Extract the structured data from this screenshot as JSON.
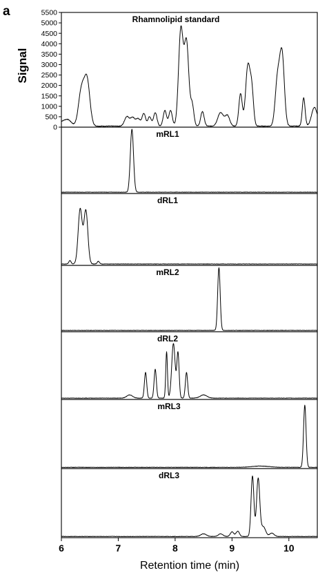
{
  "figure": {
    "panel_letter": "a",
    "ylabel": "Signal",
    "xlabel": "Retention time (min)"
  },
  "chart_data": {
    "type": "line",
    "xlim": [
      6,
      10.5
    ],
    "x_ticks": [
      6,
      7,
      8,
      9,
      10
    ],
    "x_tick_labels": [
      "6",
      "7",
      "8",
      "9",
      "10"
    ],
    "grid": false,
    "panels": [
      {
        "id": "standard",
        "title": "Rhamnolipid standard",
        "ylim": [
          0,
          5500
        ],
        "y_ticks": [
          0,
          500,
          1000,
          1500,
          2000,
          2500,
          3000,
          3500,
          4000,
          4500,
          5000,
          5500
        ],
        "y_tick_labels": [
          "0",
          "500",
          "1000",
          "1500",
          "2000",
          "2500",
          "3000",
          "3500",
          "4000",
          "4500",
          "5000",
          "5500"
        ],
        "baseline": 50,
        "peaks": [
          {
            "x": 6.0,
            "h": 200,
            "w": 0.08
          },
          {
            "x": 6.12,
            "h": 250,
            "w": 0.06
          },
          {
            "x": 6.35,
            "h": 1650,
            "w": 0.05
          },
          {
            "x": 6.45,
            "h": 2200,
            "w": 0.05
          },
          {
            "x": 7.15,
            "h": 450,
            "w": 0.04
          },
          {
            "x": 7.25,
            "h": 400,
            "w": 0.04
          },
          {
            "x": 7.35,
            "h": 350,
            "w": 0.04
          },
          {
            "x": 7.45,
            "h": 600,
            "w": 0.03
          },
          {
            "x": 7.55,
            "h": 450,
            "w": 0.03
          },
          {
            "x": 7.65,
            "h": 650,
            "w": 0.03
          },
          {
            "x": 7.82,
            "h": 750,
            "w": 0.03
          },
          {
            "x": 7.92,
            "h": 750,
            "w": 0.03
          },
          {
            "x": 8.1,
            "h": 4600,
            "w": 0.04
          },
          {
            "x": 8.2,
            "h": 4000,
            "w": 0.04
          },
          {
            "x": 8.3,
            "h": 1000,
            "w": 0.03
          },
          {
            "x": 8.48,
            "h": 700,
            "w": 0.03
          },
          {
            "x": 8.8,
            "h": 650,
            "w": 0.05
          },
          {
            "x": 8.92,
            "h": 500,
            "w": 0.04
          },
          {
            "x": 9.15,
            "h": 1550,
            "w": 0.03
          },
          {
            "x": 9.28,
            "h": 2900,
            "w": 0.04
          },
          {
            "x": 9.35,
            "h": 1500,
            "w": 0.03
          },
          {
            "x": 9.8,
            "h": 2200,
            "w": 0.04
          },
          {
            "x": 9.88,
            "h": 3400,
            "w": 0.04
          },
          {
            "x": 10.26,
            "h": 1350,
            "w": 0.025
          },
          {
            "x": 10.45,
            "h": 900,
            "w": 0.05
          }
        ]
      },
      {
        "id": "mRL1",
        "title": "mRL1",
        "baseline": 0.01,
        "peaks": [
          {
            "x": 7.24,
            "h": 1.0,
            "w": 0.028
          }
        ]
      },
      {
        "id": "dRL1",
        "title": "dRL1",
        "baseline": 0.01,
        "peaks": [
          {
            "x": 6.15,
            "h": 0.05,
            "w": 0.02
          },
          {
            "x": 6.33,
            "h": 0.8,
            "w": 0.035
          },
          {
            "x": 6.43,
            "h": 0.78,
            "w": 0.035
          },
          {
            "x": 6.65,
            "h": 0.04,
            "w": 0.02
          }
        ]
      },
      {
        "id": "mRL2",
        "title": "mRL2",
        "baseline": 0.01,
        "peaks": [
          {
            "x": 8.77,
            "h": 1.0,
            "w": 0.022
          }
        ]
      },
      {
        "id": "dRL2",
        "title": "dRL2",
        "baseline": 0.01,
        "peaks": [
          {
            "x": 7.2,
            "h": 0.05,
            "w": 0.05
          },
          {
            "x": 7.48,
            "h": 0.4,
            "w": 0.02
          },
          {
            "x": 7.65,
            "h": 0.45,
            "w": 0.02
          },
          {
            "x": 7.85,
            "h": 0.72,
            "w": 0.015
          },
          {
            "x": 7.97,
            "h": 0.85,
            "w": 0.03
          },
          {
            "x": 8.05,
            "h": 0.7,
            "w": 0.02
          },
          {
            "x": 8.2,
            "h": 0.4,
            "w": 0.02
          },
          {
            "x": 8.5,
            "h": 0.05,
            "w": 0.06
          }
        ]
      },
      {
        "id": "mRL3",
        "title": "mRL3",
        "baseline": 0.008,
        "peaks": [
          {
            "x": 9.5,
            "h": 0.02,
            "w": 0.15
          },
          {
            "x": 10.28,
            "h": 0.95,
            "w": 0.022
          }
        ]
      },
      {
        "id": "dRL3",
        "title": "dRL3",
        "baseline": 0.008,
        "peaks": [
          {
            "x": 8.5,
            "h": 0.04,
            "w": 0.05
          },
          {
            "x": 8.8,
            "h": 0.04,
            "w": 0.04
          },
          {
            "x": 9.0,
            "h": 0.07,
            "w": 0.03
          },
          {
            "x": 9.1,
            "h": 0.08,
            "w": 0.03
          },
          {
            "x": 9.36,
            "h": 0.92,
            "w": 0.025
          },
          {
            "x": 9.46,
            "h": 0.88,
            "w": 0.028
          },
          {
            "x": 9.55,
            "h": 0.15,
            "w": 0.04
          },
          {
            "x": 9.7,
            "h": 0.05,
            "w": 0.04
          }
        ]
      }
    ]
  }
}
